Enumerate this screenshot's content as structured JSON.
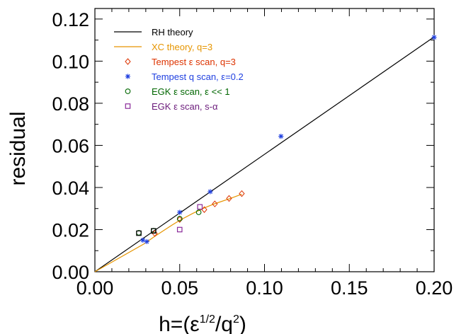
{
  "chart_data": {
    "type": "scatter",
    "xlabel": "h=(ε",
    "xlabel_sup": "1/2",
    "xlabel_mid": "/q",
    "xlabel_sup2": "2",
    "xlabel_end": ")",
    "ylabel": "residual",
    "xlim": [
      0,
      0.2
    ],
    "ylim": [
      0,
      0.125
    ],
    "x_ticks": [
      "0.00",
      "0.05",
      "0.10",
      "0.15",
      "0.20"
    ],
    "x_tick_values": [
      0,
      0.05,
      0.1,
      0.15,
      0.2
    ],
    "y_ticks": [
      "0.00",
      "0.02",
      "0.04",
      "0.06",
      "0.08",
      "0.10",
      "0.12"
    ],
    "y_tick_values": [
      0,
      0.02,
      0.04,
      0.06,
      0.08,
      0.1,
      0.12
    ],
    "legend_position": "top-left",
    "series": [
      {
        "name": "RH theory",
        "kind": "line",
        "color": "#000000",
        "x": [
          0,
          0.2
        ],
        "y": [
          0,
          0.1115
        ]
      },
      {
        "name": "XC theory, q=3",
        "kind": "line",
        "color": "#e69500",
        "x": [
          0,
          0.0289,
          0.0353,
          0.0408,
          0.0456,
          0.05,
          0.0577,
          0.0645,
          0.0707,
          0.0791,
          0.0866
        ],
        "y": [
          0,
          0.0132,
          0.0168,
          0.0197,
          0.0222,
          0.0244,
          0.0277,
          0.0303,
          0.0323,
          0.0346,
          0.0368
        ]
      },
      {
        "name": "Tempest ε scan, q=3",
        "kind": "marker",
        "marker": "diamond",
        "color": "#dd3300",
        "x": [
          0.0353,
          0.05,
          0.0645,
          0.0707,
          0.0791,
          0.0866
        ],
        "y": [
          0.0182,
          0.0248,
          0.0295,
          0.0322,
          0.0348,
          0.0371
        ]
      },
      {
        "name": "Tempest q scan, ε=0.2",
        "kind": "marker",
        "marker": "asterisk",
        "color": "#2040e0",
        "x": [
          0.0283,
          0.0306,
          0.05,
          0.068,
          0.1097,
          0.2
        ],
        "y": [
          0.015,
          0.0143,
          0.0282,
          0.038,
          0.0643,
          0.1113
        ]
      },
      {
        "name": "EGK ε scan, ε << 1",
        "kind": "marker",
        "marker": "circle",
        "color": "#006600",
        "x": [
          0.0259,
          0.0346,
          0.05,
          0.0612
        ],
        "y": [
          0.0185,
          0.0195,
          0.0252,
          0.0282
        ]
      },
      {
        "name": "EGK ε scan, s-α",
        "kind": "marker",
        "marker": "square",
        "color": "#8a2a9a",
        "x": [
          0.05,
          0.0619
        ],
        "y": [
          0.02,
          0.0308
        ]
      },
      {
        "name": "",
        "kind": "marker",
        "marker": "square",
        "color": "#000000",
        "x": [
          0.0259,
          0.0346
        ],
        "y": [
          0.0183,
          0.0194
        ]
      }
    ]
  },
  "legend": [
    {
      "label": "RH theory",
      "color": "#000000",
      "text_color": "#000000",
      "marker": "line"
    },
    {
      "label": "XC theory, q=3",
      "color": "#e69500",
      "text_color": "#e69500",
      "marker": "line"
    },
    {
      "label": "Tempest ε scan, q=3",
      "color": "#dd3300",
      "text_color": "#dd3300",
      "marker": "diamond"
    },
    {
      "label": "Tempest q scan, ε=0.2",
      "color": "#2040e0",
      "text_color": "#2040e0",
      "marker": "asterisk"
    },
    {
      "label": "EGK ε scan, ε << 1",
      "color": "#006600",
      "text_color": "#006600",
      "marker": "circle"
    },
    {
      "label": "EGK ε scan, s-α",
      "color": "#8a2a9a",
      "text_color": "#6a1a7a",
      "marker": "square"
    }
  ]
}
